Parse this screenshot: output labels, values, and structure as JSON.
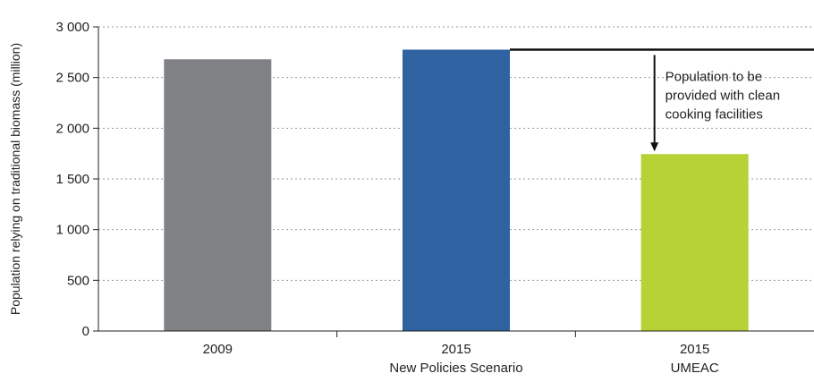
{
  "chart_data": {
    "type": "bar",
    "categories": [
      {
        "line1": "2009",
        "line2": ""
      },
      {
        "line1": "2015",
        "line2": "New Policies Scenario"
      },
      {
        "line1": "2015",
        "line2": "UMEAC"
      }
    ],
    "values": [
      2680,
      2775,
      1745
    ],
    "bar_colors": [
      "#808285",
      "#2e62a0",
      "#b5d334"
    ],
    "ylabel": "Population relying on traditional biomass (million)",
    "ylim": [
      0,
      3000
    ],
    "yticks": [
      {
        "value": 0,
        "label": "0"
      },
      {
        "value": 500,
        "label": "500"
      },
      {
        "value": 1000,
        "label": "1 000"
      },
      {
        "value": 1500,
        "label": "1 500"
      },
      {
        "value": 2000,
        "label": "2 000"
      },
      {
        "value": 2500,
        "label": "2 500"
      },
      {
        "value": 3000,
        "label": "3 000"
      }
    ],
    "grid": true,
    "annotation": {
      "lines": [
        "Population to be",
        "provided with clean",
        "cooking facilities"
      ],
      "reference_value": 2775,
      "arrow_from": 2775,
      "arrow_to": 1745
    }
  }
}
